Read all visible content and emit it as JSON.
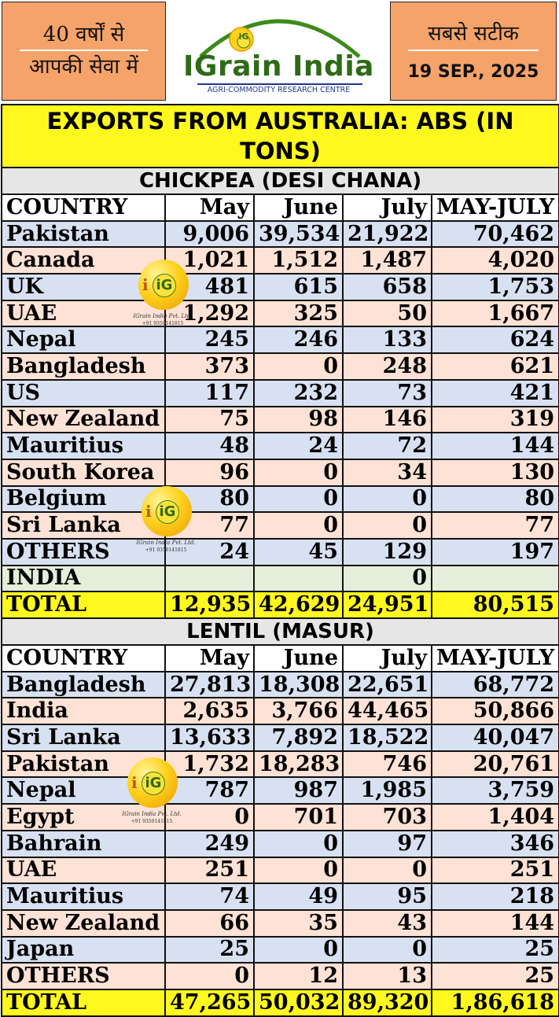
{
  "header": {
    "left_line1": "40 वर्षों से",
    "left_line2": "आपकी सेवा में",
    "brand_name": "IGrain India",
    "brand_tagline": "AGRI-COMMODITY RESEARCH CENTRE",
    "logo_badge": "iG",
    "right_line1": "सबसे सटीक",
    "date": "19 SEP., 2025"
  },
  "title": "EXPORTS FROM AUSTRALIA: ABS (IN TONS)",
  "columns": [
    "COUNTRY",
    "May",
    "June",
    "July",
    "MAY-JULY"
  ],
  "chickpea": {
    "section_title": "CHICKPEA (DESI CHANA)",
    "rows": [
      {
        "country": "Pakistan",
        "may": "9,006",
        "june": "39,534",
        "july": "21,922",
        "total": "70,462"
      },
      {
        "country": "Canada",
        "may": "1,021",
        "june": "1,512",
        "july": "1,487",
        "total": "4,020"
      },
      {
        "country": "UK",
        "may": "481",
        "june": "615",
        "july": "658",
        "total": "1,753"
      },
      {
        "country": "UAE",
        "may": "1,292",
        "june": "325",
        "july": "50",
        "total": "1,667"
      },
      {
        "country": "Nepal",
        "may": "245",
        "june": "246",
        "july": "133",
        "total": "624"
      },
      {
        "country": "Bangladesh",
        "may": "373",
        "june": "0",
        "july": "248",
        "total": "621"
      },
      {
        "country": "US",
        "may": "117",
        "june": "232",
        "july": "73",
        "total": "421"
      },
      {
        "country": "New Zealand",
        "may": "75",
        "june": "98",
        "july": "146",
        "total": "319"
      },
      {
        "country": "Mauritius",
        "may": "48",
        "june": "24",
        "july": "72",
        "total": "144"
      },
      {
        "country": "South Korea",
        "may": "96",
        "june": "0",
        "july": "34",
        "total": "130"
      },
      {
        "country": "Belgium",
        "may": "80",
        "june": "0",
        "july": "0",
        "total": "80"
      },
      {
        "country": "Sri Lanka",
        "may": "77",
        "june": "0",
        "july": "0",
        "total": "77"
      },
      {
        "country": "OTHERS",
        "may": "24",
        "june": "45",
        "july": "129",
        "total": "197"
      },
      {
        "country": "INDIA",
        "may": "",
        "june": "",
        "july": "0",
        "total": ""
      }
    ],
    "total": {
      "label": "TOTAL",
      "may": "12,935",
      "june": "42,629",
      "july": "24,951",
      "total": "80,515"
    }
  },
  "lentil": {
    "section_title": "LENTIL (MASUR)",
    "rows": [
      {
        "country": "Bangladesh",
        "may": "27,813",
        "june": "18,308",
        "july": "22,651",
        "total": "68,772"
      },
      {
        "country": "India",
        "may": "2,635",
        "june": "3,766",
        "july": "44,465",
        "total": "50,866"
      },
      {
        "country": "Sri Lanka",
        "may": "13,633",
        "june": "7,892",
        "july": "18,522",
        "total": "40,047"
      },
      {
        "country": "Pakistan",
        "may": "1,732",
        "june": "18,283",
        "july": "746",
        "total": "20,761"
      },
      {
        "country": "Nepal",
        "may": "787",
        "june": "987",
        "july": "1,985",
        "total": "3,759"
      },
      {
        "country": "Egypt",
        "may": "0",
        "june": "701",
        "july": "703",
        "total": "1,404"
      },
      {
        "country": "Bahrain",
        "may": "249",
        "june": "0",
        "july": "97",
        "total": "346"
      },
      {
        "country": "UAE",
        "may": "251",
        "june": "0",
        "july": "0",
        "total": "251"
      },
      {
        "country": "Mauritius",
        "may": "74",
        "june": "49",
        "july": "95",
        "total": "218"
      },
      {
        "country": "New Zealand",
        "may": "66",
        "june": "35",
        "july": "43",
        "total": "144"
      },
      {
        "country": "Japan",
        "may": "25",
        "june": "0",
        "july": "0",
        "total": "25"
      },
      {
        "country": "OTHERS",
        "may": "0",
        "june": "12",
        "july": "13",
        "total": "25"
      }
    ],
    "total": {
      "label": "TOTAL",
      "may": "47,265",
      "june": "50,032",
      "july": "89,320",
      "total": "1,86,618"
    }
  },
  "watermark": {
    "badge": "iG",
    "company": "IGrain India Pvt. Ltd.",
    "phone": "+91 9350141815"
  },
  "colors": {
    "header_orange": "#f5a36a",
    "title_yellow": "#fff81e",
    "row_blue": "#d8e1f1",
    "row_peach": "#fde2d5",
    "row_green": "#e3efda",
    "brand_green": "#2d6b17",
    "brand_navy": "#1e3a8a"
  }
}
